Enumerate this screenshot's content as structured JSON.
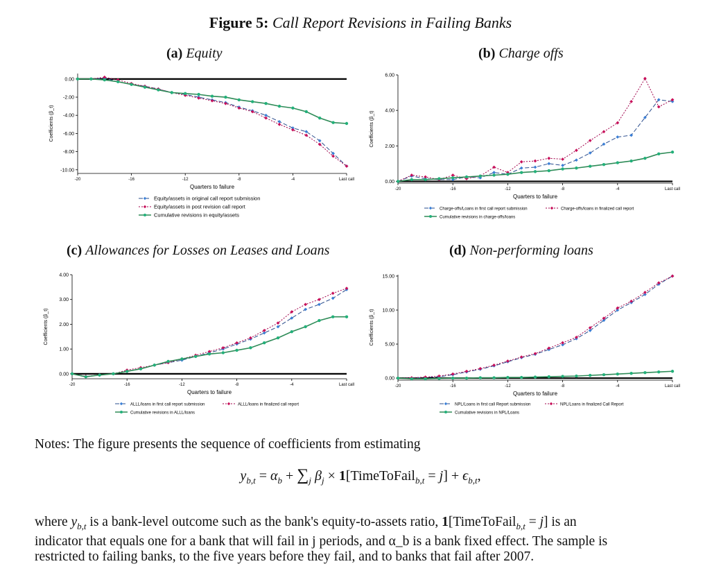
{
  "figure": {
    "label": "Figure 5:",
    "title": "Call Report Revisions in Failing Banks"
  },
  "notes": {
    "intro": "Notes: The figure presents the sequence of coefficients from estimating",
    "body_line1_a": "where ",
    "body_line1_b": " is a bank-level outcome such as the bank's equity-to-assets ratio, ",
    "body_line1_c": " is an",
    "body_line2": "indicator that equals one for a bank that will fail in j periods, and α_b is a bank fixed effect. The sample is",
    "body_line3": "restricted to failing banks, to the five years before they fail, and to banks that fail after 2007.",
    "eq_indicator": "1[TimeToFail",
    "eq_indicator_close": " = j]"
  },
  "chart_data": [
    {
      "id": "a",
      "caption_label": "(a)",
      "caption_title": "Equity",
      "type": "line",
      "xlabel": "Quarters to failure",
      "ylabel": "Coefficients (β_t)",
      "xticks": [
        "-20",
        "-16",
        "-12",
        "-8",
        "-4",
        "Last call"
      ],
      "xtick_values": [
        -20,
        -16,
        -12,
        -8,
        -4,
        0
      ],
      "yticks": [
        "0.00",
        "-2.00",
        "-4.00",
        "-6.00",
        "-8.00",
        "-10.00"
      ],
      "ytick_values": [
        0,
        -2,
        -4,
        -6,
        -8,
        -10
      ],
      "xlim": [
        -20,
        0
      ],
      "ylim": [
        -10.4,
        0.6
      ],
      "x": [
        -20,
        -19,
        -18,
        -17,
        -16,
        -15,
        -14,
        -13,
        -12,
        -11,
        -10,
        -9,
        -8,
        -7,
        -6,
        -5,
        -4,
        -3,
        -2,
        -1,
        0
      ],
      "series": [
        {
          "name": "Equity/assets in original call report submission",
          "style": "blue-dash",
          "values": [
            0,
            0,
            0.1,
            -0.3,
            -0.6,
            -0.8,
            -1.1,
            -1.5,
            -1.7,
            -2.0,
            -2.3,
            -2.6,
            -3.1,
            -3.5,
            -4.0,
            -4.7,
            -5.4,
            -5.8,
            -6.8,
            -8.2,
            -9.6
          ]
        },
        {
          "name": "Equity/assets in post revision call report",
          "style": "red-dot",
          "values": [
            0,
            0,
            0.2,
            -0.1,
            -0.5,
            -0.8,
            -1.1,
            -1.5,
            -1.8,
            -2.1,
            -2.4,
            -2.7,
            -3.2,
            -3.6,
            -4.3,
            -5.0,
            -5.6,
            -6.2,
            -7.2,
            -8.5,
            -9.6
          ]
        },
        {
          "name": "Cumulative revisions in equity/assets",
          "style": "green-solid",
          "values": [
            0,
            0,
            -0.1,
            -0.3,
            -0.6,
            -0.9,
            -1.2,
            -1.5,
            -1.6,
            -1.7,
            -1.9,
            -2.0,
            -2.3,
            -2.5,
            -2.7,
            -3.0,
            -3.2,
            -3.6,
            -4.3,
            -4.8,
            -4.9
          ]
        }
      ]
    },
    {
      "id": "b",
      "caption_label": "(b)",
      "caption_title": "Charge offs",
      "type": "line",
      "xlabel": "Quarters to failure",
      "ylabel": "Coefficients (β_t)",
      "xticks": [
        "-20",
        "-16",
        "-12",
        "-8",
        "-4",
        "Last call"
      ],
      "xtick_values": [
        -20,
        -16,
        -12,
        -8,
        -4,
        0
      ],
      "yticks": [
        "0.00",
        "2.00",
        "4.00",
        "6.00"
      ],
      "ytick_values": [
        0,
        2,
        4,
        6
      ],
      "xlim": [
        -20,
        0
      ],
      "ylim": [
        -0.1,
        6.0
      ],
      "x": [
        -20,
        -19,
        -18,
        -17,
        -16,
        -15,
        -14,
        -13,
        -12,
        -11,
        -10,
        -9,
        -8,
        -7,
        -6,
        -5,
        -4,
        -3,
        -2,
        -1,
        0
      ],
      "series": [
        {
          "name": "Charge-offs/Loans in first call report submission",
          "style": "blue-dash",
          "values": [
            0,
            0.3,
            0.15,
            0.1,
            0.1,
            0.25,
            0.2,
            0.5,
            0.4,
            0.75,
            0.8,
            1.0,
            0.9,
            1.2,
            1.6,
            2.1,
            2.5,
            2.6,
            3.6,
            4.6,
            4.5
          ]
        },
        {
          "name": "Charge-offs/loans in finalized call report",
          "style": "red-dot",
          "values": [
            0,
            0.35,
            0.25,
            0.1,
            0.35,
            0.15,
            0.3,
            0.8,
            0.5,
            1.1,
            1.15,
            1.3,
            1.25,
            1.75,
            2.3,
            2.8,
            3.3,
            4.5,
            5.8,
            4.2,
            4.6
          ]
        },
        {
          "name": "Cumulative revisions in charge-offs/loans",
          "style": "green-solid",
          "values": [
            0,
            0.1,
            0.1,
            0.15,
            0.2,
            0.25,
            0.3,
            0.35,
            0.4,
            0.5,
            0.55,
            0.6,
            0.7,
            0.75,
            0.85,
            0.95,
            1.05,
            1.15,
            1.3,
            1.55,
            1.65
          ]
        }
      ]
    },
    {
      "id": "c",
      "caption_label": "(c)",
      "caption_title": "Allowances for Losses on Leases and Loans",
      "type": "line",
      "xlabel": "Quarters to failure",
      "ylabel": "Coefficients (β_t)",
      "xticks": [
        "-20",
        "-16",
        "-12",
        "-8",
        "-4",
        "Last call"
      ],
      "xtick_values": [
        -20,
        -16,
        -12,
        -8,
        -4,
        0
      ],
      "yticks": [
        "0.00",
        "1.00",
        "2.00",
        "3.00",
        "4.00"
      ],
      "ytick_values": [
        0,
        1,
        2,
        3,
        4
      ],
      "xlim": [
        -20,
        0
      ],
      "ylim": [
        -0.2,
        4.0
      ],
      "x": [
        -20,
        -19,
        -18,
        -17,
        -16,
        -15,
        -14,
        -13,
        -12,
        -11,
        -10,
        -9,
        -8,
        -7,
        -6,
        -5,
        -4,
        -3,
        -2,
        -1,
        0
      ],
      "series": [
        {
          "name": "ALLL/loans in first call report submission",
          "style": "blue-dash",
          "values": [
            0,
            -0.1,
            -0.05,
            0.0,
            0.1,
            0.2,
            0.35,
            0.45,
            0.55,
            0.7,
            0.85,
            1.0,
            1.2,
            1.4,
            1.65,
            1.9,
            2.25,
            2.6,
            2.8,
            3.05,
            3.4
          ]
        },
        {
          "name": "ALLL/loans in finalized call report",
          "style": "red-dot",
          "values": [
            0,
            -0.1,
            -0.05,
            0.0,
            0.15,
            0.25,
            0.35,
            0.45,
            0.6,
            0.75,
            0.9,
            1.05,
            1.25,
            1.45,
            1.75,
            2.05,
            2.5,
            2.8,
            3.0,
            3.25,
            3.45
          ]
        },
        {
          "name": "Cumulative revisions in ALLL/loans",
          "style": "green-solid",
          "values": [
            0,
            -0.12,
            -0.05,
            0.0,
            0.1,
            0.2,
            0.35,
            0.5,
            0.6,
            0.7,
            0.8,
            0.85,
            0.95,
            1.05,
            1.25,
            1.45,
            1.7,
            1.9,
            2.15,
            2.3,
            2.3
          ]
        }
      ]
    },
    {
      "id": "d",
      "caption_label": "(d)",
      "caption_title": "Non-performing loans",
      "type": "line",
      "xlabel": "Quarters to failure",
      "ylabel": "Coefficients (β_t)",
      "xticks": [
        "-20",
        "-16",
        "-12",
        "-8",
        "-4",
        "Last call"
      ],
      "xtick_values": [
        -20,
        -16,
        -12,
        -8,
        -4,
        0
      ],
      "yticks": [
        "0.00",
        "5.00",
        "10.00",
        "15.00"
      ],
      "ytick_values": [
        0,
        5,
        10,
        15
      ],
      "xlim": [
        -20,
        0
      ],
      "ylim": [
        -0.3,
        15.2
      ],
      "x": [
        -20,
        -19,
        -18,
        -17,
        -16,
        -15,
        -14,
        -13,
        -12,
        -11,
        -10,
        -9,
        -8,
        -7,
        -6,
        -5,
        -4,
        -3,
        -2,
        -1,
        0
      ],
      "series": [
        {
          "name": "NPL/Loans in first call Report submission",
          "style": "blue-dash",
          "values": [
            0,
            0,
            0.1,
            0.2,
            0.5,
            0.9,
            1.3,
            1.8,
            2.4,
            3.0,
            3.5,
            4.2,
            4.9,
            5.8,
            7.0,
            8.5,
            10.0,
            11.1,
            12.3,
            13.8,
            15.0
          ]
        },
        {
          "name": "NPL/Loans in finalized Call Report",
          "style": "red-dot",
          "values": [
            0,
            0.05,
            0.15,
            0.3,
            0.6,
            1.0,
            1.4,
            1.9,
            2.5,
            3.1,
            3.6,
            4.4,
            5.2,
            6.0,
            7.4,
            8.8,
            10.3,
            11.3,
            12.6,
            14.0,
            15.0
          ]
        },
        {
          "name": "Cumulative revisions in NPL/Loans",
          "style": "green-solid",
          "values": [
            0,
            -0.1,
            -0.1,
            -0.05,
            0,
            0,
            0.05,
            0.05,
            0.1,
            0.1,
            0.15,
            0.2,
            0.25,
            0.3,
            0.4,
            0.5,
            0.6,
            0.7,
            0.8,
            0.9,
            1.0
          ]
        }
      ]
    }
  ]
}
